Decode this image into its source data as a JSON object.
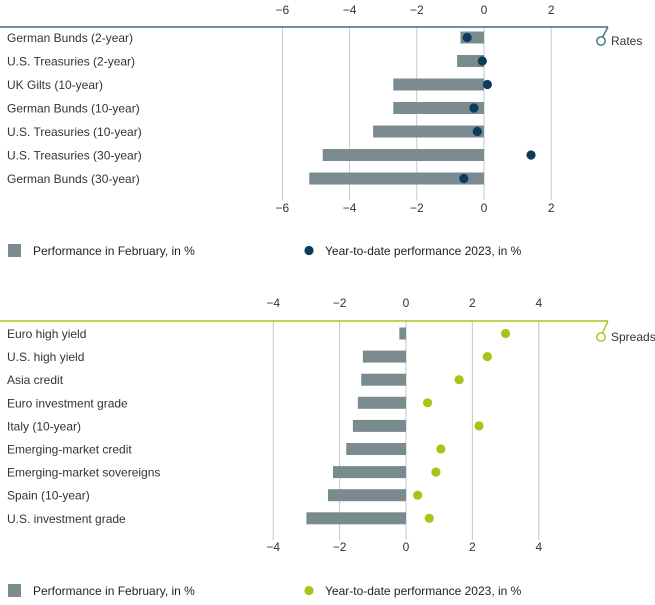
{
  "colors": {
    "bar": "#7a8b8f",
    "rates_dot": "#0d3c5a",
    "rates_line": "#3e6e86",
    "spreads_dot": "#a8c31a",
    "spreads_line": "#a8c31a",
    "grid": "#c6c6c6"
  },
  "chart_data": [
    {
      "type": "bar",
      "panel_label": "Rates",
      "orientation": "horizontal",
      "xlim": [
        -6,
        2
      ],
      "xticks": [
        "−6",
        "−4",
        "−2",
        "0",
        "2"
      ],
      "xtick_values": [
        -6,
        -4,
        -2,
        0,
        2
      ],
      "grid": true,
      "categories": [
        "German Bunds (2-year)",
        "U.S. Treasuries (2-year)",
        "UK Gilts (10-year)",
        "German Bunds (10-year)",
        "U.S. Treasuries (10-year)",
        "U.S. Treasuries (30-year)",
        "German Bunds (30-year)"
      ],
      "series": [
        {
          "name": "Performance in February, in %",
          "kind": "bar",
          "values": [
            -0.7,
            -0.8,
            -2.7,
            -2.7,
            -3.3,
            -4.8,
            -5.2
          ]
        },
        {
          "name": "Year-to-date performance 2023, in %",
          "kind": "dot",
          "values": [
            -0.5,
            -0.05,
            0.1,
            -0.3,
            -0.2,
            1.4,
            -0.6
          ]
        }
      ]
    },
    {
      "type": "bar",
      "panel_label": "Spreads",
      "orientation": "horizontal",
      "xlim": [
        -4,
        4
      ],
      "xticks": [
        "−4",
        "−2",
        "0",
        "2",
        "4"
      ],
      "xtick_values": [
        -4,
        -2,
        0,
        2,
        4
      ],
      "grid": true,
      "categories": [
        "Euro high yield",
        "U.S. high yield",
        "Asia credit",
        "Euro investment grade",
        "Italy (10-year)",
        "Emerging-market credit",
        "Emerging-market sovereigns",
        "Spain (10-year)",
        "U.S. investment grade"
      ],
      "series": [
        {
          "name": "Performance in February, in %",
          "kind": "bar",
          "values": [
            -0.2,
            -1.3,
            -1.35,
            -1.45,
            -1.6,
            -1.8,
            -2.2,
            -2.35,
            -3.0
          ]
        },
        {
          "name": "Year-to-date performance 2023, in %",
          "kind": "dot",
          "values": [
            3.0,
            2.45,
            1.6,
            0.65,
            2.2,
            1.05,
            0.9,
            0.35,
            0.7
          ]
        }
      ]
    }
  ]
}
